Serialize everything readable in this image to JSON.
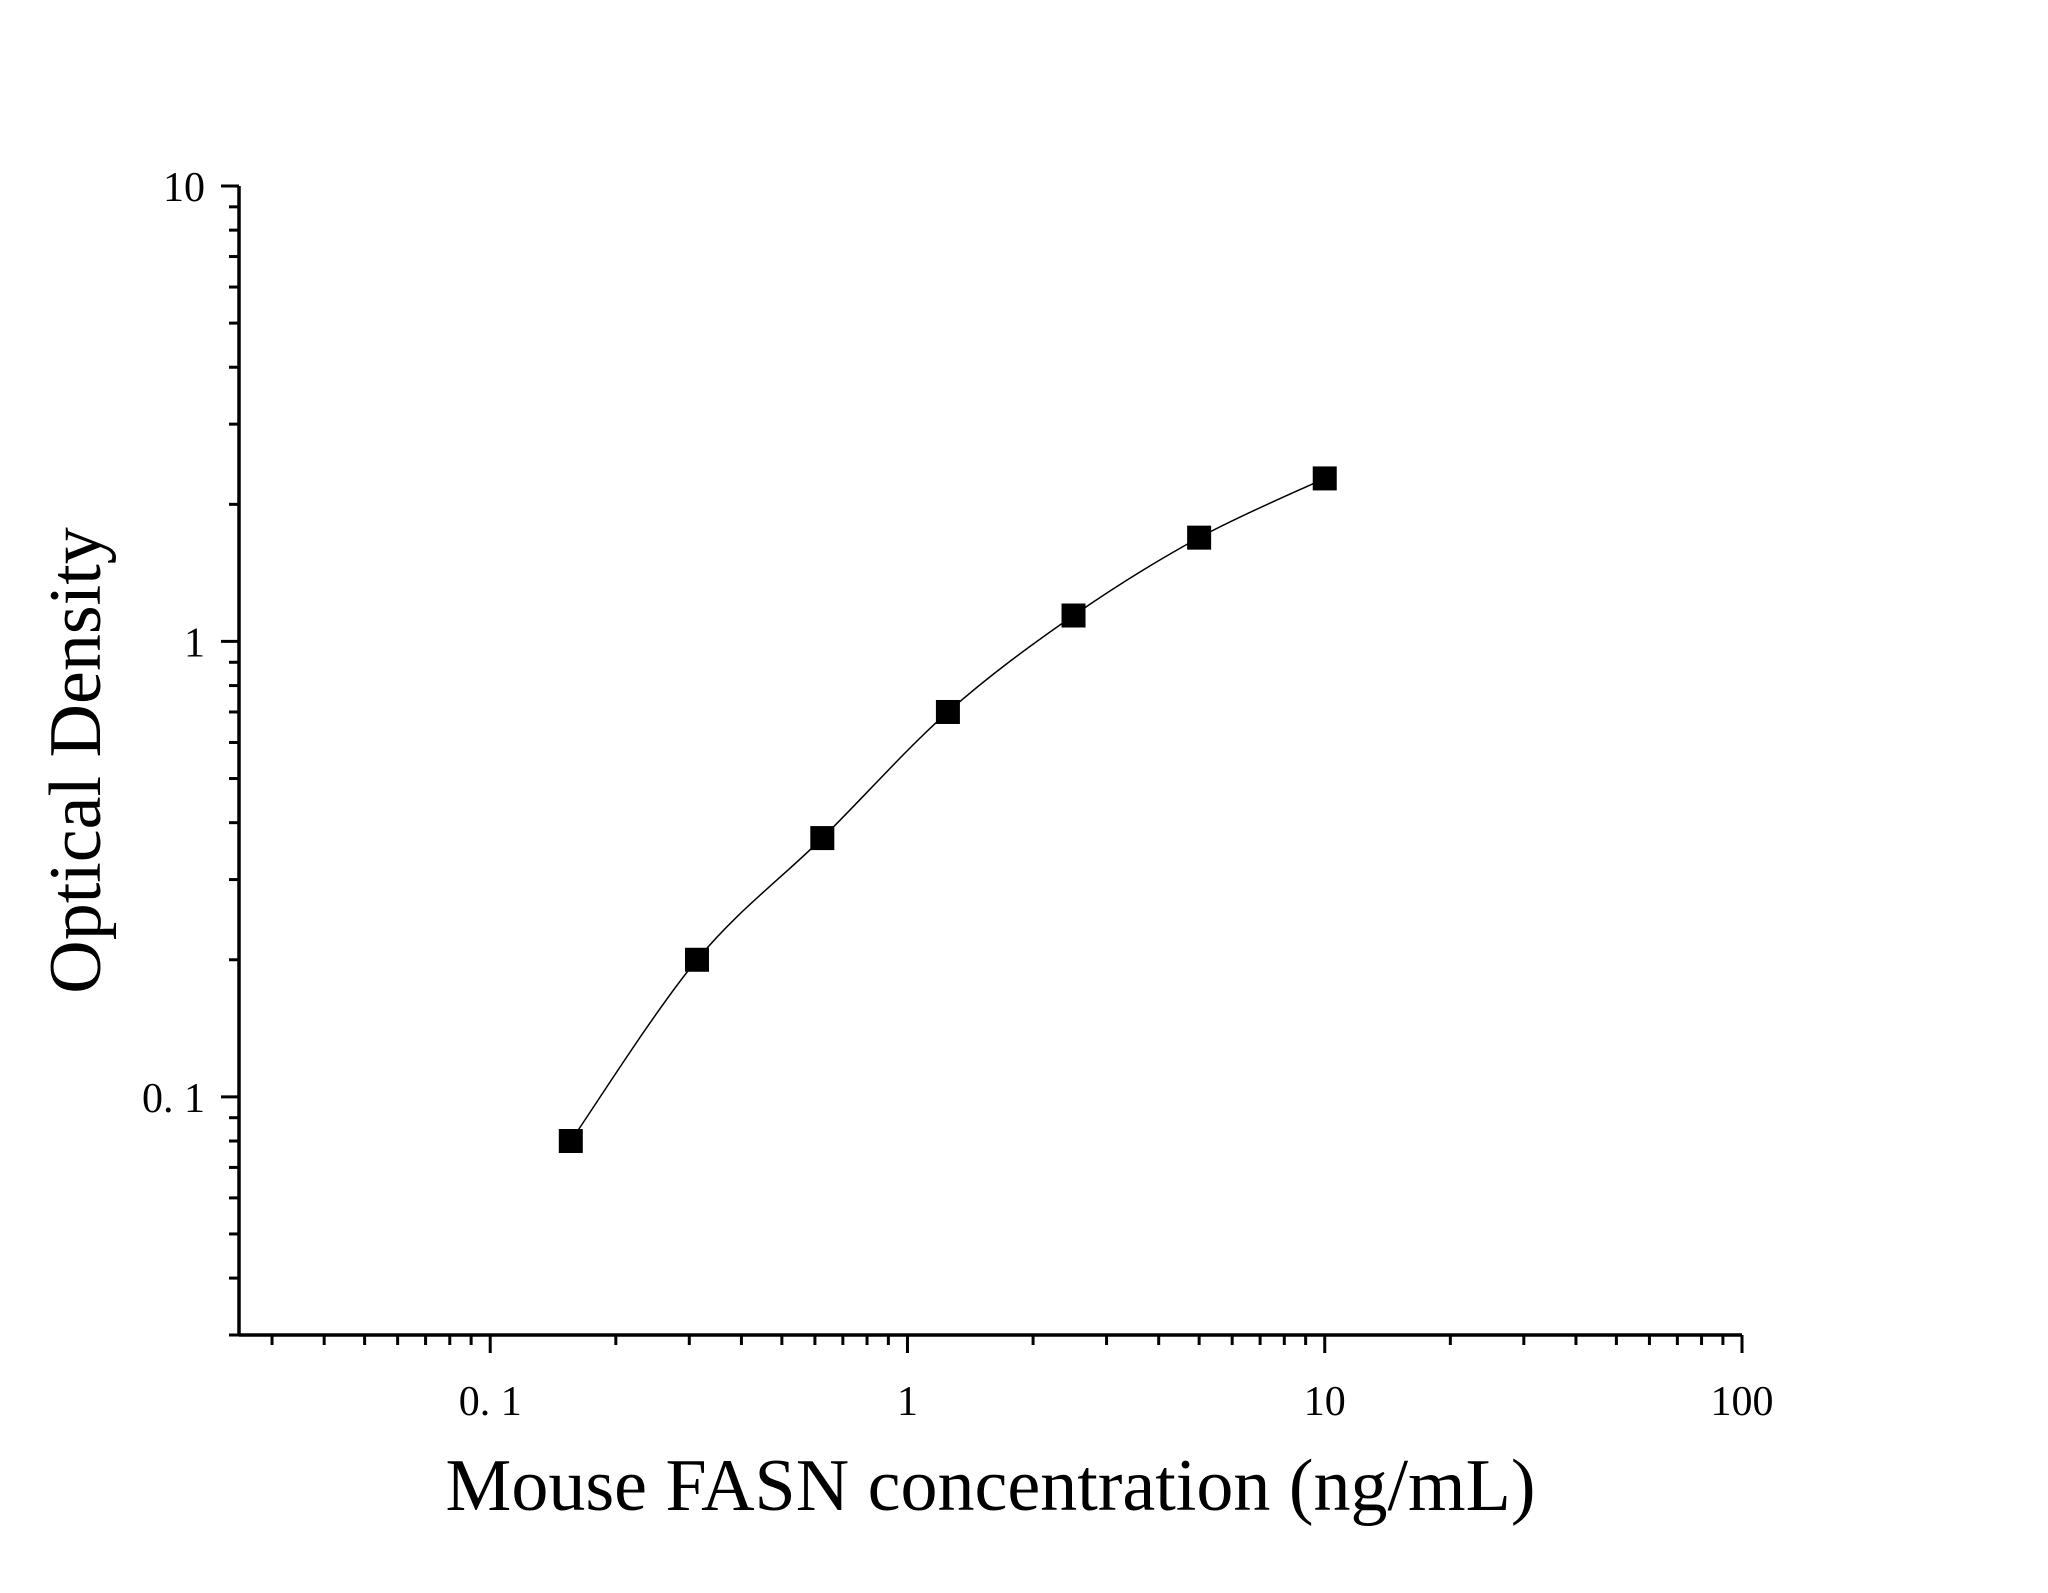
{
  "chart_data": {
    "type": "scatter",
    "title": "",
    "xlabel": "Mouse FASN concentration (ng/mL)",
    "ylabel": "Optical Density",
    "xscale": "log",
    "yscale": "log",
    "xlim": [
      0.025,
      100
    ],
    "ylim": [
      0.03,
      10
    ],
    "x_ticks": [
      {
        "value": 0.1,
        "label": "0. 1"
      },
      {
        "value": 1,
        "label": "1"
      },
      {
        "value": 10,
        "label": "10"
      },
      {
        "value": 100,
        "label": "100"
      }
    ],
    "y_ticks": [
      {
        "value": 0.1,
        "label": "0. 1"
      },
      {
        "value": 1,
        "label": "1"
      },
      {
        "value": 10,
        "label": "10"
      }
    ],
    "grid": false,
    "legend": "none",
    "marker": "square",
    "color": "#000000",
    "series": [
      {
        "x": [
          0.156,
          0.313,
          0.625,
          1.25,
          2.5,
          5,
          10
        ],
        "y": [
          0.08,
          0.2,
          0.37,
          0.7,
          1.14,
          1.69,
          2.28
        ]
      }
    ],
    "fit_curve": true
  }
}
